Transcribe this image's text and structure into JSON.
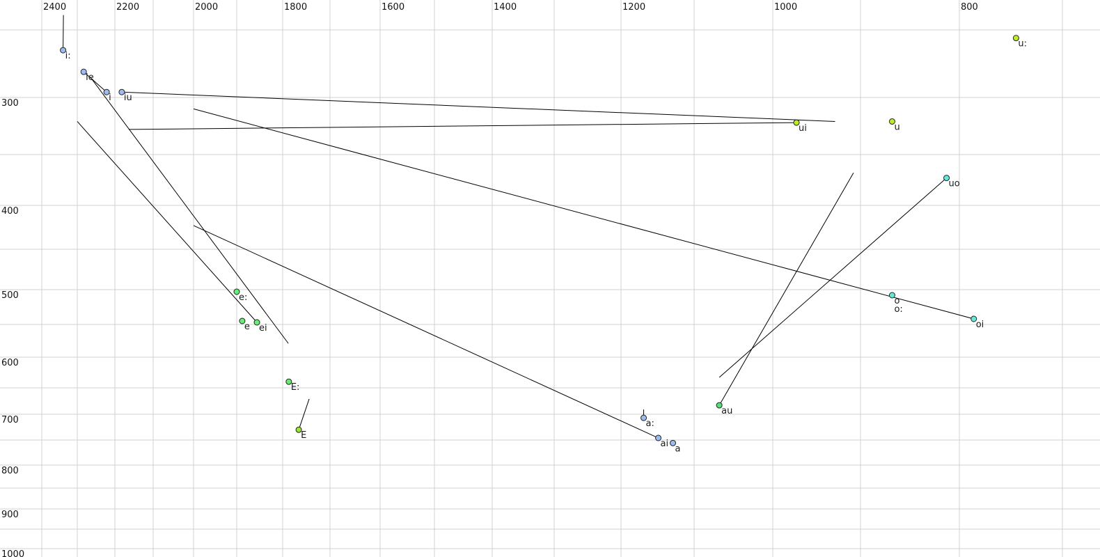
{
  "chart_data": {
    "type": "scatter",
    "title": "",
    "xlabel": "",
    "ylabel": "",
    "x_axis_reversed": true,
    "y_axis_reversed": true,
    "x_ticks": [
      2400,
      2200,
      2000,
      1800,
      1600,
      1400,
      1200,
      1000,
      800
    ],
    "y_ticks": [
      300,
      400,
      500,
      600,
      700,
      800,
      900,
      1000
    ],
    "grid": true,
    "points": [
      {
        "label": "i:",
        "x": 2340,
        "y": 265,
        "color": "#9cbcf0"
      },
      {
        "label": "ie",
        "x": 2283,
        "y": 281,
        "color": "#9cbcf0"
      },
      {
        "label": "i",
        "x": 2222,
        "y": 296,
        "color": "#9cbcf0"
      },
      {
        "label": "iu",
        "x": 2182,
        "y": 296,
        "color": "#9cbcf0"
      },
      {
        "label": "ui",
        "x": 973,
        "y": 322,
        "color": "#bbee22"
      },
      {
        "label": "u",
        "x": 868,
        "y": 321,
        "color": "#bbee22"
      },
      {
        "label": "u:",
        "x": 745,
        "y": 256,
        "color": "#bbee22"
      },
      {
        "label": "uo",
        "x": 813,
        "y": 373,
        "color": "#66e8d8"
      },
      {
        "label": "o",
        "x": 868,
        "y": 508,
        "color": "#66e8d8"
      },
      {
        "label": "o:",
        "x": 868,
        "y": 508,
        "color": "#66e8d8"
      },
      {
        "label": "oi",
        "x": 786,
        "y": 542,
        "color": "#66e8d8"
      },
      {
        "label": "au",
        "x": 1068,
        "y": 683,
        "color": "#55e07a"
      },
      {
        "label": "a:",
        "x": 1169,
        "y": 707,
        "color": "#9cbcf0"
      },
      {
        "label": "ai",
        "x": 1149,
        "y": 746,
        "color": "#9cbcf0"
      },
      {
        "label": "a",
        "x": 1129,
        "y": 756,
        "color": "#9cbcf0"
      },
      {
        "label": "E:",
        "x": 1787,
        "y": 640,
        "color": "#66ee66"
      },
      {
        "label": "E",
        "x": 1766,
        "y": 730,
        "color": "#99e633"
      },
      {
        "label": "e:",
        "x": 1900,
        "y": 503,
        "color": "#66ee77"
      },
      {
        "label": "e",
        "x": 1888,
        "y": 545,
        "color": "#66ee77"
      },
      {
        "label": "ei",
        "x": 1856,
        "y": 547,
        "color": "#66ee77"
      }
    ],
    "segments": [
      {
        "from": [
          2339,
          239
        ],
        "to": [
          2340,
          265
        ]
      },
      {
        "from": [
          2283,
          281
        ],
        "to": [
          2222,
          296
        ]
      },
      {
        "from": [
          2182,
          296
        ],
        "to": [
          929,
          321
        ]
      },
      {
        "from": [
          2164,
          328
        ],
        "to": [
          973,
          322
        ]
      },
      {
        "from": [
          2000,
          310
        ],
        "to": [
          786,
          542
        ]
      },
      {
        "from": [
          2300,
          321
        ],
        "to": [
          1856,
          547
        ]
      },
      {
        "from": [
          2265,
          285
        ],
        "to": [
          1788,
          579
        ]
      },
      {
        "from": [
          2000,
          423
        ],
        "to": [
          1149,
          746
        ]
      },
      {
        "from": [
          1744,
          671
        ],
        "to": [
          1766,
          730
        ]
      },
      {
        "from": [
          1169,
          691
        ],
        "to": [
          1169,
          707
        ]
      },
      {
        "from": [
          908,
          368
        ],
        "to": [
          1068,
          683
        ]
      },
      {
        "from": [
          813,
          373
        ],
        "to": [
          1068,
          633
        ]
      }
    ]
  }
}
